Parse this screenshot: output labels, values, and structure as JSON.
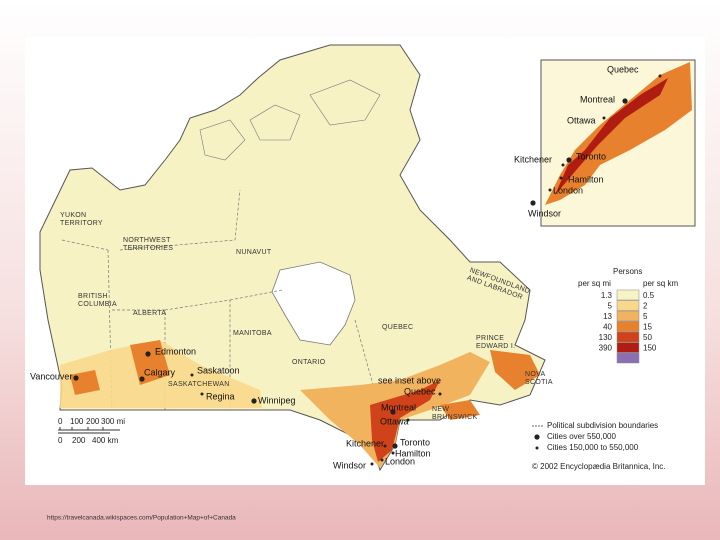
{
  "map": {
    "regions": [
      {
        "lines": [
          "YUKON",
          "TERRITORY"
        ]
      },
      {
        "lines": [
          "NORTHWEST",
          "TERRITORIES"
        ]
      },
      {
        "lines": [
          "NUNAVUT"
        ]
      },
      {
        "lines": [
          "BRITISH",
          "COLUMBIA"
        ]
      },
      {
        "lines": [
          "ALBERTA"
        ]
      },
      {
        "lines": [
          "MANITOBA"
        ]
      },
      {
        "lines": [
          "SASKATCHEWAN"
        ]
      },
      {
        "lines": [
          "ONTARIO"
        ]
      },
      {
        "lines": [
          "QUEBEC"
        ]
      },
      {
        "lines": [
          "NEWFOUNDLAND",
          "AND LABRADOR"
        ]
      },
      {
        "lines": [
          "PRINCE",
          "EDWARD I."
        ]
      },
      {
        "lines": [
          "NOVA",
          "SCOTIA"
        ]
      },
      {
        "lines": [
          "NEW",
          "BRUNSWICK"
        ]
      }
    ],
    "cities": [
      "Edmonton",
      "Calgary",
      "Vancouver",
      "Saskatoon",
      "Regina",
      "Winnipeg",
      "Quebec",
      "Montreal",
      "Ottawa",
      "Toronto",
      "Kitchener",
      "Hamilton",
      "London",
      "Windsor"
    ],
    "note": "see inset above"
  },
  "inset": {
    "cities": [
      "Quebec",
      "Montreal",
      "Ottawa",
      "Toronto",
      "Kitchener",
      "Hamilton",
      "London",
      "Windsor"
    ]
  },
  "legend": {
    "title": "Persons",
    "col_mi": "per sq mi",
    "col_km": "per sq km",
    "rows": [
      {
        "mi": 1.3,
        "km": 0.5,
        "color": "#f7f2c4"
      },
      {
        "mi": 5,
        "km": 2,
        "color": "#f8d98c"
      },
      {
        "mi": 13,
        "km": 5,
        "color": "#f2b35e"
      },
      {
        "mi": 40,
        "km": 15,
        "color": "#e8812e"
      },
      {
        "mi": 130,
        "km": 50,
        "color": "#d0431a"
      },
      {
        "mi": 390,
        "km": 150,
        "color": "#ae1c12"
      },
      {
        "color": "#8a70b2"
      }
    ],
    "items": [
      "Political subdivision boundaries",
      "Cities over 550,000",
      "Cities 150,000 to 550,000"
    ]
  },
  "scale": {
    "mi": [
      "0",
      "100",
      "200",
      "300 mi"
    ],
    "km": [
      "0",
      "200",
      "400 km"
    ]
  },
  "copyright": "© 2002 Encyclopædia Britannica, Inc.",
  "source": "https://travelcanada.wikispaces.com/Population+Map+of+Canada"
}
